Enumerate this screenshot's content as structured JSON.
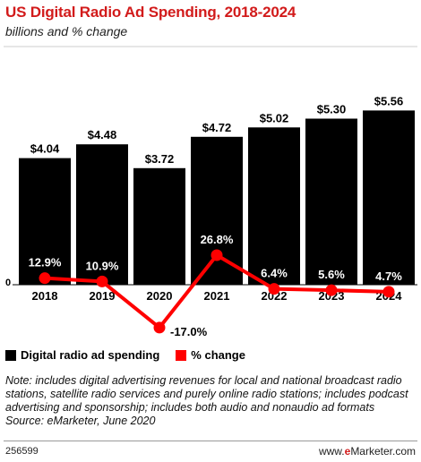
{
  "title": "US Digital Radio Ad Spending, 2018-2024",
  "subtitle": "billions and % change",
  "colors": {
    "title": "#d21b1b",
    "bar": "#000000",
    "line": "#ff0000"
  },
  "chart_data": {
    "type": "bar",
    "categories": [
      "2018",
      "2019",
      "2020",
      "2021",
      "2022",
      "2023",
      "2024"
    ],
    "zero_label": "0",
    "series": [
      {
        "name": "Digital radio ad spending",
        "type": "bar",
        "values": [
          4.04,
          4.48,
          3.72,
          4.72,
          5.02,
          5.3,
          5.56
        ],
        "labels": [
          "$4.04",
          "$4.48",
          "$3.72",
          "$4.72",
          "$5.02",
          "$5.30",
          "$5.56"
        ]
      },
      {
        "name": "% change",
        "type": "line",
        "values": [
          12.9,
          10.9,
          -17.0,
          26.8,
          6.4,
          5.6,
          4.7
        ],
        "labels": [
          "12.9%",
          "10.9%",
          "-17.0%",
          "26.8%",
          "6.4%",
          "5.6%",
          "4.7%"
        ]
      }
    ],
    "legend_position": "bottom-left",
    "grid": false
  },
  "legend": {
    "bar_label": "Digital radio ad spending",
    "line_label": "% change"
  },
  "note": "Note: includes digital advertising revenues for local and national broadcast radio stations, satellite radio services and purely online radio stations; includes podcast advertising and sponsorship; includes both audio and nonaudio ad formats",
  "source": "Source: eMarketer, June 2020",
  "footer": {
    "id": "256599",
    "brand_prefix": "www.",
    "brand_e": "e",
    "brand_rest": "Marketer.com"
  }
}
